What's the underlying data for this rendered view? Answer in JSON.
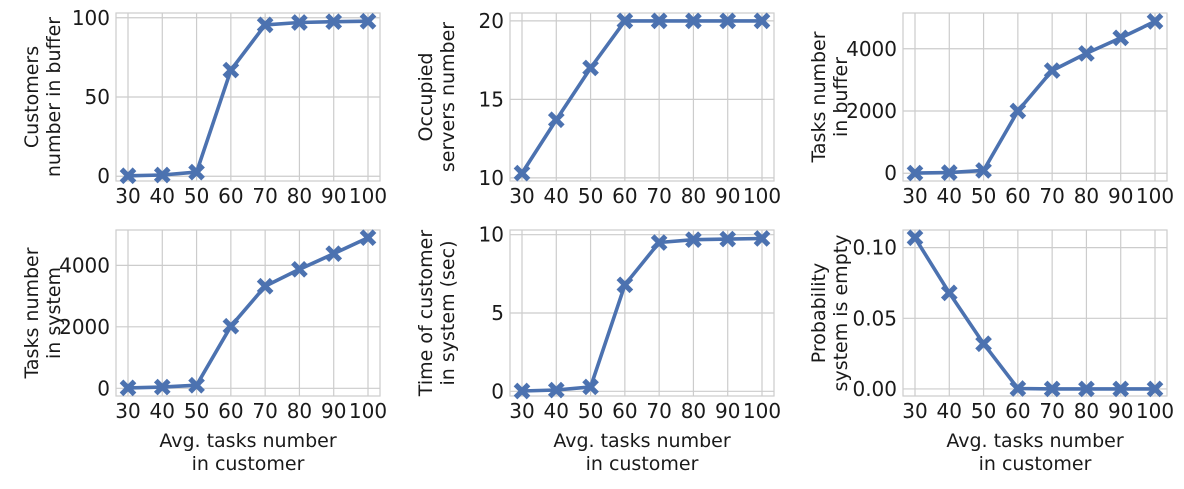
{
  "chart_data": [
    {
      "type": "line",
      "categories": [
        "30",
        "40",
        "50",
        "60",
        "70",
        "80",
        "90",
        "100"
      ],
      "series": [
        {
          "values": [
            0.3,
            0.8,
            2.6,
            67,
            95.5,
            97,
            97.5,
            97.8
          ]
        }
      ],
      "ylabel": [
        "Customers",
        "number in buffer"
      ],
      "xlabel": [],
      "ylim": [
        -3,
        103
      ],
      "yticks": [
        0,
        50,
        100
      ],
      "ytick_labels": [
        "0",
        "50",
        "100"
      ],
      "grid": true,
      "color": "#4c72b0",
      "marker": "x-filled"
    },
    {
      "type": "line",
      "categories": [
        "30",
        "40",
        "50",
        "60",
        "70",
        "80",
        "90",
        "100"
      ],
      "series": [
        {
          "values": [
            10.3,
            13.7,
            17.0,
            20.0,
            20.0,
            20.0,
            20.0,
            20.0
          ]
        }
      ],
      "ylabel": [
        "Occupied",
        "servers number"
      ],
      "xlabel": [],
      "ylim": [
        9.8,
        20.5
      ],
      "yticks": [
        10,
        15,
        20
      ],
      "ytick_labels": [
        "10",
        "15",
        "20"
      ],
      "grid": true,
      "color": "#4c72b0",
      "marker": "x-filled"
    },
    {
      "type": "line",
      "categories": [
        "30",
        "40",
        "50",
        "60",
        "70",
        "80",
        "90",
        "100"
      ],
      "series": [
        {
          "values": [
            5,
            20,
            90,
            2000,
            3300,
            3850,
            4350,
            4880
          ]
        }
      ],
      "ylabel": [
        "Tasks number",
        "in buffer"
      ],
      "xlabel": [],
      "ylim": [
        -250,
        5150
      ],
      "yticks": [
        0,
        2000,
        4000
      ],
      "ytick_labels": [
        "0",
        "2000",
        "4000"
      ],
      "grid": true,
      "color": "#4c72b0",
      "marker": "x-filled"
    },
    {
      "type": "line",
      "categories": [
        "30",
        "40",
        "50",
        "60",
        "70",
        "80",
        "90",
        "100"
      ],
      "series": [
        {
          "values": [
            15,
            40,
            100,
            2020,
            3320,
            3870,
            4380,
            4900
          ]
        }
      ],
      "ylabel": [
        "Tasks number",
        "in system"
      ],
      "xlabel": [
        "Avg. tasks number",
        "in customer"
      ],
      "ylim": [
        -250,
        5150
      ],
      "yticks": [
        0,
        2000,
        4000
      ],
      "ytick_labels": [
        "0",
        "2000",
        "4000"
      ],
      "grid": true,
      "color": "#4c72b0",
      "marker": "x-filled"
    },
    {
      "type": "line",
      "categories": [
        "30",
        "40",
        "50",
        "60",
        "70",
        "80",
        "90",
        "100"
      ],
      "series": [
        {
          "values": [
            0.02,
            0.08,
            0.28,
            6.8,
            9.5,
            9.68,
            9.72,
            9.76
          ]
        }
      ],
      "ylabel": [
        "Time of customer",
        "in system (sec)"
      ],
      "xlabel": [
        "Avg. tasks number",
        "in customer"
      ],
      "ylim": [
        -0.3,
        10.3
      ],
      "yticks": [
        0,
        5,
        10
      ],
      "ytick_labels": [
        "0",
        "5",
        "10"
      ],
      "grid": true,
      "color": "#4c72b0",
      "marker": "x-filled"
    },
    {
      "type": "line",
      "categories": [
        "30",
        "40",
        "50",
        "60",
        "70",
        "80",
        "90",
        "100"
      ],
      "series": [
        {
          "values": [
            0.107,
            0.068,
            0.032,
            0.0003,
            0.0,
            0.0,
            0.0,
            0.0
          ]
        }
      ],
      "ylabel": [
        "Probability",
        "system is empty"
      ],
      "xlabel": [
        "Avg. tasks number",
        "in customer"
      ],
      "ylim": [
        -0.005,
        0.1125
      ],
      "yticks": [
        0.0,
        0.05,
        0.1
      ],
      "ytick_labels": [
        "0.00",
        "0.05",
        "0.10"
      ],
      "grid": true,
      "color": "#4c72b0",
      "marker": "x-filled"
    }
  ]
}
